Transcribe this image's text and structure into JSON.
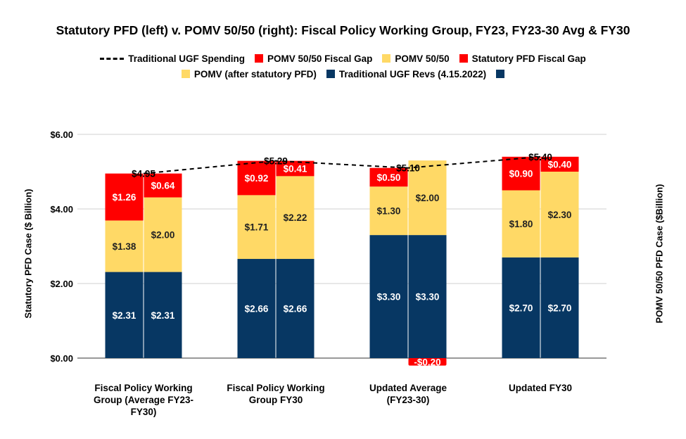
{
  "chart_data": {
    "type": "bar",
    "title": "Statutory PFD (left) v. POMV 50/50 (right): Fiscal Policy Working Group, FY23, FY23-30 Avg & FY30",
    "ylabel": "Statutory PFD Case ($ Billion)",
    "ylabel_right": "POMV 50/50 PFD Case ($Billion)",
    "ylim": [
      0,
      6
    ],
    "yticks": [
      "$0.00",
      "$2.00",
      "$4.00",
      "$6.00"
    ],
    "grid": true,
    "legend_position": "top",
    "categories": [
      "Fiscal Policy Working Group (Average FY23-FY30)",
      "Fiscal Policy Working Group FY30",
      "Updated Average (FY23-30)",
      "Updated FY30"
    ],
    "category_lines": [
      [
        "Fiscal Policy Working",
        "Group (Average FY23-",
        "FY30)"
      ],
      [
        "Fiscal Policy Working",
        "Group FY30"
      ],
      [
        "Updated Average",
        "(FY23-30)"
      ],
      [
        "Updated FY30"
      ]
    ],
    "legend": [
      {
        "label": "Traditional UGF Spending",
        "kind": "line",
        "color": "#000000"
      },
      {
        "label": "POMV 50/50 Fiscal Gap",
        "kind": "box",
        "color": "#ff0000"
      },
      {
        "label": "POMV 50/50",
        "kind": "box",
        "color": "#ffd966"
      },
      {
        "label": "Statutory PFD Fiscal Gap",
        "kind": "box",
        "color": "#ff0000"
      },
      {
        "label": "POMV (after statutory PFD)",
        "kind": "box",
        "color": "#ffd966"
      },
      {
        "label": "Traditional UGF Revs (4.15.2022)",
        "kind": "box",
        "color": "#073763"
      },
      {
        "label": "",
        "kind": "box",
        "color": "#073763"
      }
    ],
    "colors": {
      "revs": "#073763",
      "pomv": "#ffd966",
      "gap": "#ff0000",
      "line": "#000000"
    },
    "series": [
      {
        "name": "Traditional UGF Revs (4.15.2022)",
        "stack": "statutory",
        "values": [
          2.31,
          2.66,
          3.3,
          2.7
        ],
        "labels": [
          "$2.31",
          "$2.66",
          "$3.30",
          "$2.70"
        ]
      },
      {
        "name": "POMV (after statutory PFD)",
        "stack": "statutory",
        "values": [
          1.38,
          1.71,
          1.3,
          1.8
        ],
        "labels": [
          "$1.38",
          "$1.71",
          "$1.30",
          "$1.80"
        ]
      },
      {
        "name": "Statutory PFD Fiscal Gap",
        "stack": "statutory",
        "values": [
          1.26,
          0.92,
          0.5,
          0.9
        ],
        "labels": [
          "$1.26",
          "$0.92",
          "$0.50",
          "$0.90"
        ]
      },
      {
        "name": "Traditional UGF Revs (4.15.2022)",
        "stack": "pomv",
        "values": [
          2.31,
          2.66,
          3.3,
          2.7
        ],
        "labels": [
          "$2.31",
          "$2.66",
          "$3.30",
          "$2.70"
        ]
      },
      {
        "name": "POMV 50/50",
        "stack": "pomv",
        "values": [
          2.0,
          2.22,
          2.0,
          2.3
        ],
        "labels": [
          "$2.00",
          "$2.22",
          "$2.00",
          "$2.30"
        ]
      },
      {
        "name": "POMV 50/50 Fiscal Gap",
        "stack": "pomv",
        "values": [
          0.64,
          0.41,
          -0.2,
          0.4
        ],
        "labels": [
          "$0.64",
          "$0.41",
          "-$0.20",
          "$0.40"
        ]
      },
      {
        "name": "Traditional UGF Spending",
        "type": "line",
        "values": [
          4.95,
          5.29,
          5.1,
          5.4
        ],
        "labels": [
          "$4.95",
          "$5.29",
          "$5.10",
          "$5.40"
        ]
      }
    ]
  }
}
